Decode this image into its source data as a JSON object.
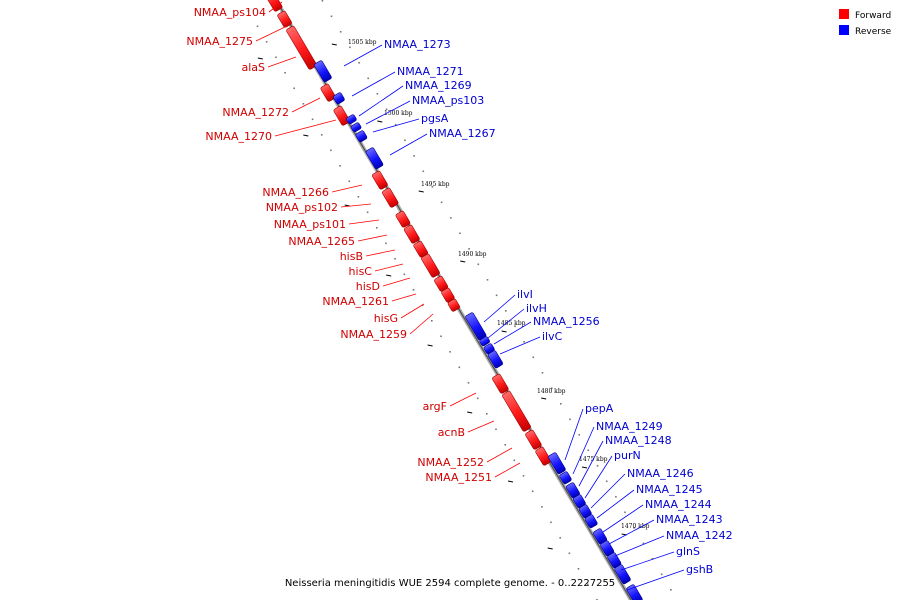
{
  "caption": "Neisseria meningitidis WUE 2594 complete genome. - 0..2227255",
  "legend": {
    "forward": {
      "label": "Forward",
      "color": "#ff0000"
    },
    "reverse": {
      "label": "Reverse",
      "color": "#0000ff"
    }
  },
  "axis": {
    "ticks": [
      "1505 kbp",
      "1500 kbp",
      "1495 kbp",
      "1490 kbp",
      "1485 kbp",
      "1480 kbp",
      "1475 kbp",
      "1470 kbp"
    ]
  },
  "genes_forward": [
    "NMAA_ps104",
    "NMAA_1275",
    "alaS",
    "NMAA_1272",
    "NMAA_1270",
    "NMAA_1266",
    "NMAA_ps102",
    "NMAA_ps101",
    "NMAA_1265",
    "hisB",
    "hisC",
    "hisD",
    "NMAA_1261",
    "hisG",
    "NMAA_1259",
    "argF",
    "acnB",
    "NMAA_1252",
    "NMAA_1251"
  ],
  "genes_reverse": [
    "NMAA_1273",
    "NMAA_1271",
    "NMAA_1269",
    "NMAA_ps103",
    "pgsA",
    "NMAA_1267",
    "ilvI",
    "ilvH",
    "NMAA_1256",
    "ilvC",
    "pepA",
    "NMAA_1249",
    "NMAA_1248",
    "purN",
    "NMAA_1246",
    "NMAA_1245",
    "NMAA_1244",
    "NMAA_1243",
    "NMAA_1242",
    "glnS",
    "gshB"
  ]
}
